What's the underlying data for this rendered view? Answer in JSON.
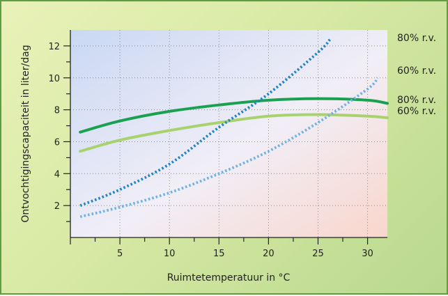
{
  "chart_data": {
    "type": "line",
    "title": "",
    "xlabel": "Ruimtetemperatuur in °C",
    "ylabel": "Ontvochtigingscapaciteit in liter/dag",
    "xlim": [
      0,
      32
    ],
    "ylim": [
      0,
      13
    ],
    "xticks": [
      5,
      10,
      15,
      20,
      25,
      30
    ],
    "yticks": [
      2,
      4,
      6,
      8,
      10,
      12
    ],
    "grid": true,
    "series": [
      {
        "name": "80% r.v.",
        "style": "dotted",
        "color": "#1f84c8",
        "x": [
          1,
          5,
          10,
          15,
          20,
          25,
          26.2
        ],
        "y": [
          2.0,
          3.0,
          4.6,
          6.9,
          9.0,
          11.6,
          12.4
        ]
      },
      {
        "name": "60% r.v.",
        "style": "dotted",
        "color": "#6fb3e4",
        "x": [
          1,
          5,
          10,
          15,
          20,
          25,
          30,
          31
        ],
        "y": [
          1.3,
          1.9,
          2.8,
          4.0,
          5.4,
          7.2,
          9.3,
          10.0
        ]
      },
      {
        "name": "80% r.v.",
        "style": "solid",
        "color": "#1aa150",
        "x": [
          1,
          5,
          10,
          15,
          20,
          25,
          30,
          32
        ],
        "y": [
          6.6,
          7.3,
          7.9,
          8.3,
          8.6,
          8.7,
          8.6,
          8.4
        ]
      },
      {
        "name": "60% r.v.",
        "style": "solid",
        "color": "#a8d26e",
        "x": [
          1,
          5,
          10,
          15,
          20,
          25,
          30,
          32
        ],
        "y": [
          5.4,
          6.1,
          6.7,
          7.2,
          7.6,
          7.7,
          7.6,
          7.5
        ]
      }
    ]
  }
}
